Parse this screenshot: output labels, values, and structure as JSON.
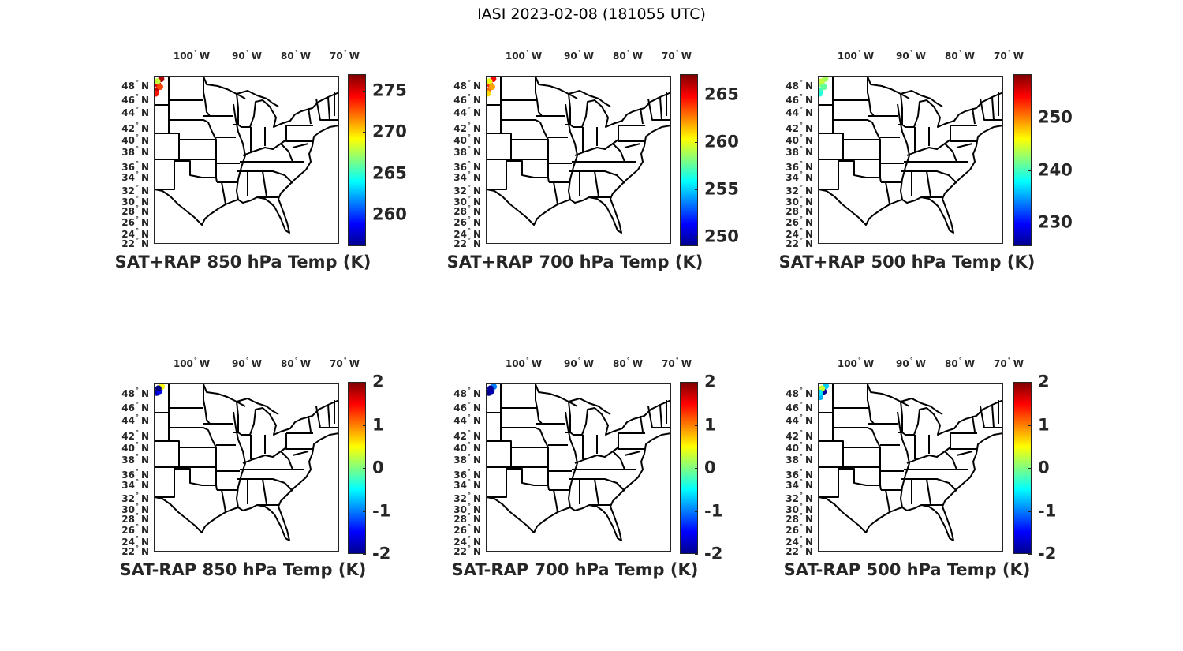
{
  "title": "IASI 2023-02-08 (181055 UTC)",
  "chart_data": {
    "type": "scatter",
    "lon_ticks": [
      {
        "value": -100,
        "label": "100",
        "hem": "W"
      },
      {
        "value": -90,
        "label": "90",
        "hem": "W"
      },
      {
        "value": -80,
        "label": "80",
        "hem": "W"
      },
      {
        "value": -70,
        "label": "70",
        "hem": "W"
      }
    ],
    "lat_ticks": [
      {
        "label": "48",
        "hem": "N"
      },
      {
        "label": "46",
        "hem": "N"
      },
      {
        "label": "44",
        "hem": "N"
      },
      {
        "label": "42",
        "hem": "N"
      },
      {
        "label": "40",
        "hem": "N"
      },
      {
        "label": "38",
        "hem": "N"
      },
      {
        "label": "36",
        "hem": "N"
      },
      {
        "label": "34",
        "hem": "N"
      },
      {
        "label": "32",
        "hem": "N"
      },
      {
        "label": "30",
        "hem": "N"
      },
      {
        "label": "28",
        "hem": "N"
      },
      {
        "label": "26",
        "hem": "N"
      },
      {
        "label": "24",
        "hem": "N"
      },
      {
        "label": "22",
        "hem": "N"
      }
    ],
    "degree_symbol": "°",
    "panels": [
      {
        "title": "SAT+RAP 850 hPa Temp (K)",
        "clim": [
          256.2,
          277.0
        ],
        "colorbar": {
          "ticks": [
            275,
            270,
            265,
            260
          ]
        },
        "points": [
          {
            "lon": -106.6,
            "lat": 47.4,
            "v": 275.5
          },
          {
            "lon": -106.3,
            "lat": 48.4,
            "v": 275
          },
          {
            "lon": -105.7,
            "lat": 49.3,
            "v": 276
          },
          {
            "lon": -106.4,
            "lat": 48.9,
            "v": 268
          },
          {
            "lon": -105.9,
            "lat": 48.0,
            "v": 273
          },
          {
            "lon": -106.7,
            "lat": 46.9,
            "v": 274
          }
        ]
      },
      {
        "title": "SAT+RAP 700 hPa Temp (K)",
        "clim": [
          249.0,
          267.2
        ],
        "colorbar": {
          "ticks": [
            265,
            260,
            255,
            250
          ]
        },
        "points": [
          {
            "lon": -106.6,
            "lat": 47.4,
            "v": 263
          },
          {
            "lon": -106.3,
            "lat": 48.4,
            "v": 264
          },
          {
            "lon": -105.7,
            "lat": 49.3,
            "v": 265
          },
          {
            "lon": -106.4,
            "lat": 48.9,
            "v": 260
          },
          {
            "lon": -105.9,
            "lat": 48.0,
            "v": 262
          },
          {
            "lon": -106.7,
            "lat": 46.9,
            "v": 261
          }
        ]
      },
      {
        "title": "SAT+RAP 500 hPa Temp (K)",
        "clim": [
          225.5,
          258.3
        ],
        "colorbar": {
          "ticks": [
            250,
            240,
            230
          ]
        },
        "points": [
          {
            "lon": -106.6,
            "lat": 47.4,
            "v": 240
          },
          {
            "lon": -106.3,
            "lat": 48.4,
            "v": 242
          },
          {
            "lon": -105.7,
            "lat": 49.3,
            "v": 243
          },
          {
            "lon": -106.4,
            "lat": 48.9,
            "v": 244
          },
          {
            "lon": -105.9,
            "lat": 48.0,
            "v": 241
          },
          {
            "lon": -106.7,
            "lat": 46.9,
            "v": 239
          }
        ]
      },
      {
        "title": "SAT-RAP 850 hPa Temp (K)",
        "clim": [
          -2,
          2
        ],
        "colorbar": {
          "ticks": [
            2,
            1,
            0,
            -1,
            -2
          ]
        },
        "points": [
          {
            "lon": -106.5,
            "lat": 48.3,
            "v": -1.8
          },
          {
            "lon": -106.0,
            "lat": 48.6,
            "v": -1.5
          },
          {
            "lon": -105.6,
            "lat": 49.3,
            "v": 0.5
          },
          {
            "lon": -106.2,
            "lat": 49.0,
            "v": -2
          }
        ]
      },
      {
        "title": "SAT-RAP 700 hPa Temp (K)",
        "clim": [
          -2,
          2
        ],
        "colorbar": {
          "ticks": [
            2,
            1,
            0,
            -1,
            -2
          ]
        },
        "points": [
          {
            "lon": -106.5,
            "lat": 48.3,
            "v": -2
          },
          {
            "lon": -106.0,
            "lat": 48.6,
            "v": -1.8
          },
          {
            "lon": -105.6,
            "lat": 49.3,
            "v": -1.0
          },
          {
            "lon": -106.2,
            "lat": 49.0,
            "v": -1.9
          }
        ]
      },
      {
        "title": "SAT-RAP 500 hPa Temp (K)",
        "clim": [
          -2,
          2
        ],
        "colorbar": {
          "ticks": [
            2,
            1,
            0,
            -1,
            -2
          ]
        },
        "points": [
          {
            "lon": -106.6,
            "lat": 47.6,
            "v": -0.8
          },
          {
            "lon": -106.0,
            "lat": 48.5,
            "v": -1.9
          },
          {
            "lon": -105.6,
            "lat": 49.4,
            "v": -0.7
          },
          {
            "lon": -106.3,
            "lat": 49.0,
            "v": 0.3
          },
          {
            "lon": -106.7,
            "lat": 48.3,
            "v": -0.6
          }
        ]
      }
    ]
  }
}
